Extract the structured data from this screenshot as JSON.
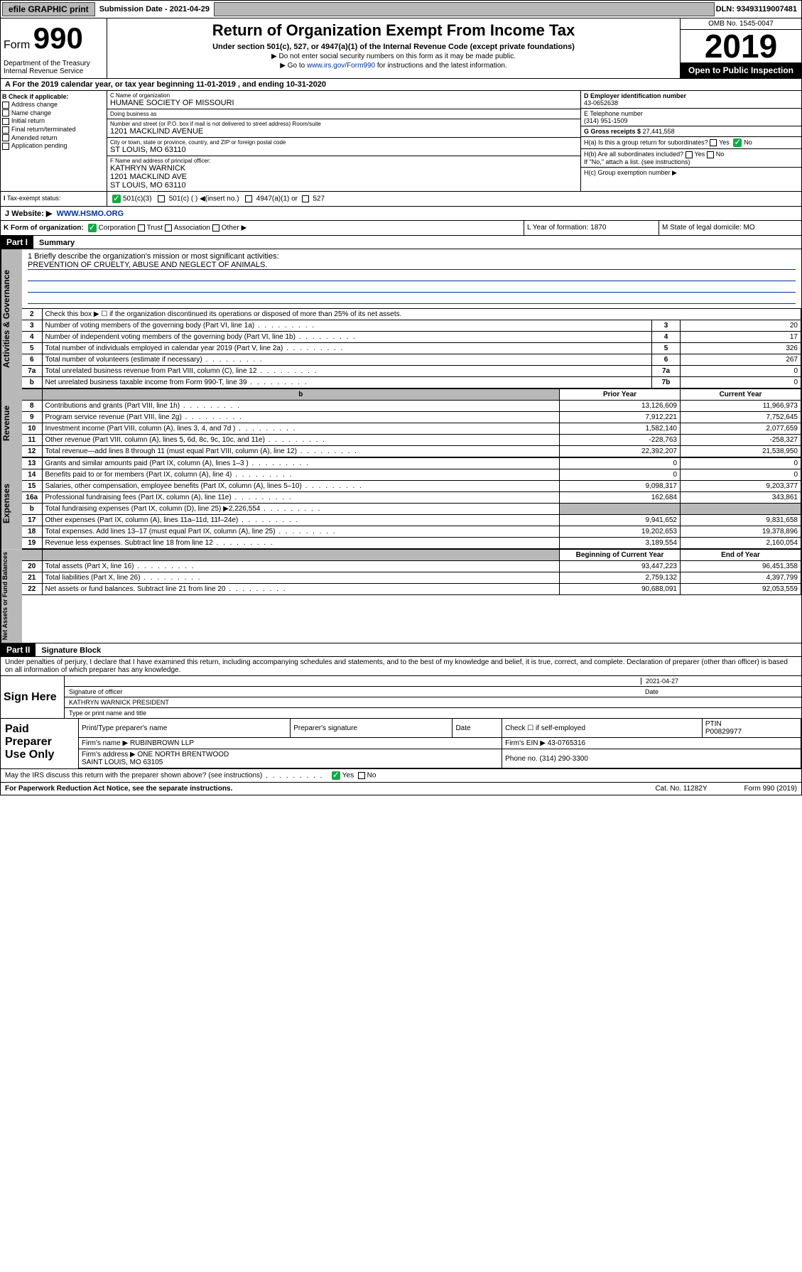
{
  "topbar": {
    "efile": "efile GRAPHIC print",
    "subdate_label": "Submission Date - 2021-04-29",
    "dln": "DLN: 93493119007481"
  },
  "header": {
    "form": "Form",
    "num": "990",
    "dept": "Department of the Treasury\nInternal Revenue Service",
    "title": "Return of Organization Exempt From Income Tax",
    "sub1": "Under section 501(c), 527, or 4947(a)(1) of the Internal Revenue Code (except private foundations)",
    "sub2": "▶ Do not enter social security numbers on this form as it may be made public.",
    "sub3_pre": "▶ Go to ",
    "sub3_link": "www.irs.gov/Form990",
    "sub3_post": " for instructions and the latest information.",
    "omb": "OMB No. 1545-0047",
    "year": "2019",
    "open": "Open to Public Inspection"
  },
  "lineA": "A For the 2019 calendar year, or tax year beginning 11-01-2019    , and ending 10-31-2020",
  "colB": {
    "hdr": "B Check if applicable:",
    "items": [
      "Address change",
      "Name change",
      "Initial return",
      "Final return/terminated",
      "Amended return",
      "Application pending"
    ]
  },
  "colC": {
    "name_lab": "C Name of organization",
    "name": "HUMANE SOCIETY OF MISSOURI",
    "dba_lab": "Doing business as",
    "dba": "",
    "addr_lab": "Number and street (or P.O. box if mail is not delivered to street address)          Room/suite",
    "addr": "1201 MACKLIND AVENUE",
    "city_lab": "City or town, state or province, country, and ZIP or foreign postal code",
    "city": "ST LOUIS, MO  63110",
    "officer_lab": "F  Name and address of principal officer:",
    "officer": "KATHRYN WARNICK\n1201 MACKLIND AVE\nST LOUIS, MO  63110"
  },
  "colD": {
    "ein_lab": "D Employer identification number",
    "ein": "43-0652638",
    "tel_lab": "E Telephone number",
    "tel": "(314) 951-1509",
    "gross_lab": "G Gross receipts $",
    "gross": "27,441,558",
    "ha": "H(a)  Is this a group return for subordinates?",
    "ha_no": "No",
    "ha_yes": "Yes",
    "hb": "H(b)  Are all subordinates included?",
    "hb_note": "If \"No,\" attach a list. (see instructions)",
    "hc": "H(c)  Group exemption number ▶"
  },
  "exempt": {
    "lab": "Tax-exempt status:",
    "c3": "501(c)(3)",
    "c": "501(c) (  ) ◀(insert no.)",
    "a1": "4947(a)(1) or",
    "s527": "527"
  },
  "website": {
    "lab": "J    Website: ▶",
    "url": "WWW.HSMO.ORG"
  },
  "rowK": {
    "k": "K Form of organization:",
    "corp": "Corporation",
    "trust": "Trust",
    "assoc": "Association",
    "other": "Other ▶",
    "l": "L Year of formation: 1870",
    "m": "M State of legal domicile: MO"
  },
  "part1": {
    "hdr": "Part I",
    "title": "Summary"
  },
  "mission": {
    "line1": "1  Briefly describe the organization's mission or most significant activities:",
    "text": "PREVENTION OF CRUELTY, ABUSE AND NEGLECT OF ANIMALS."
  },
  "gov_rows": [
    {
      "n": "2",
      "t": "Check this box ▶ ☐  if the organization discontinued its operations or disposed of more than 25% of its net assets."
    },
    {
      "n": "3",
      "t": "Number of voting members of the governing body (Part VI, line 1a)",
      "box": "3",
      "v": "20"
    },
    {
      "n": "4",
      "t": "Number of independent voting members of the governing body (Part VI, line 1b)",
      "box": "4",
      "v": "17"
    },
    {
      "n": "5",
      "t": "Total number of individuals employed in calendar year 2019 (Part V, line 2a)",
      "box": "5",
      "v": "326"
    },
    {
      "n": "6",
      "t": "Total number of volunteers (estimate if necessary)",
      "box": "6",
      "v": "267"
    },
    {
      "n": "7a",
      "t": "Total unrelated business revenue from Part VIII, column (C), line 12",
      "box": "7a",
      "v": "0"
    },
    {
      "n": "b",
      "t": "Net unrelated business taxable income from Form 990-T, line 39",
      "box": "7b",
      "v": "0"
    }
  ],
  "rev_hdr": {
    "py": "Prior Year",
    "cy": "Current Year"
  },
  "rev_rows": [
    {
      "n": "8",
      "t": "Contributions and grants (Part VIII, line 1h)",
      "py": "13,126,609",
      "cy": "11,966,973"
    },
    {
      "n": "9",
      "t": "Program service revenue (Part VIII, line 2g)",
      "py": "7,912,221",
      "cy": "7,752,645"
    },
    {
      "n": "10",
      "t": "Investment income (Part VIII, column (A), lines 3, 4, and 7d )",
      "py": "1,582,140",
      "cy": "2,077,659"
    },
    {
      "n": "11",
      "t": "Other revenue (Part VIII, column (A), lines 5, 6d, 8c, 9c, 10c, and 11e)",
      "py": "-228,763",
      "cy": "-258,327"
    },
    {
      "n": "12",
      "t": "Total revenue—add lines 8 through 11 (must equal Part VIII, column (A), line 12)",
      "py": "22,392,207",
      "cy": "21,538,950"
    }
  ],
  "exp_rows": [
    {
      "n": "13",
      "t": "Grants and similar amounts paid (Part IX, column (A), lines 1–3 )",
      "py": "0",
      "cy": "0"
    },
    {
      "n": "14",
      "t": "Benefits paid to or for members (Part IX, column (A), line 4)",
      "py": "0",
      "cy": "0"
    },
    {
      "n": "15",
      "t": "Salaries, other compensation, employee benefits (Part IX, column (A), lines 5–10)",
      "py": "9,098,317",
      "cy": "9,203,377"
    },
    {
      "n": "16a",
      "t": "Professional fundraising fees (Part IX, column (A), line 11e)",
      "py": "162,684",
      "cy": "343,861"
    },
    {
      "n": "b",
      "t": "Total fundraising expenses (Part IX, column (D), line 25) ▶2,226,554",
      "py": "",
      "cy": "",
      "shade": true
    },
    {
      "n": "17",
      "t": "Other expenses (Part IX, column (A), lines 11a–11d, 11f–24e)",
      "py": "9,941,652",
      "cy": "9,831,658"
    },
    {
      "n": "18",
      "t": "Total expenses. Add lines 13–17 (must equal Part IX, column (A), line 25)",
      "py": "19,202,653",
      "cy": "19,378,896"
    },
    {
      "n": "19",
      "t": "Revenue less expenses. Subtract line 18 from line 12",
      "py": "3,189,554",
      "cy": "2,160,054"
    }
  ],
  "net_hdr": {
    "py": "Beginning of Current Year",
    "cy": "End of Year"
  },
  "net_rows": [
    {
      "n": "20",
      "t": "Total assets (Part X, line 16)",
      "py": "93,447,223",
      "cy": "96,451,358"
    },
    {
      "n": "21",
      "t": "Total liabilities (Part X, line 26)",
      "py": "2,759,132",
      "cy": "4,397,799"
    },
    {
      "n": "22",
      "t": "Net assets or fund balances. Subtract line 21 from line 20",
      "py": "90,688,091",
      "cy": "92,053,559"
    }
  ],
  "part2": {
    "hdr": "Part II",
    "title": "Signature Block"
  },
  "perjury": "Under penalties of perjury, I declare that I have examined this return, including accompanying schedules and statements, and to the best of my knowledge and belief, it is true, correct, and complete. Declaration of preparer (other than officer) is based on all information of which preparer has any knowledge.",
  "sign": {
    "lab": "Sign Here",
    "sig_lab": "Signature of officer",
    "date": "2021-04-27",
    "date_lab": "Date",
    "name": "KATHRYN WARNICK  PRESIDENT",
    "name_lab": "Type or print name and title"
  },
  "paid": {
    "lab": "Paid Preparer Use Only",
    "c1": "Print/Type preparer's name",
    "c2": "Preparer's signature",
    "c3": "Date",
    "c4": "Check ☐ if self-employed",
    "c5": "PTIN",
    "ptin": "P00829977",
    "firm_lab": "Firm's name    ▶",
    "firm": "RUBINBROWN LLP",
    "ein_lab": "Firm's EIN ▶",
    "ein": "43-0765316",
    "addr_lab": "Firm's address ▶",
    "addr": "ONE NORTH BRENTWOOD\nSAINT LOUIS, MO  63105",
    "phone_lab": "Phone no.",
    "phone": "(314) 290-3300"
  },
  "discuss": "May the IRS discuss this return with the preparer shown above? (see instructions)",
  "foot": {
    "f1": "For Paperwork Reduction Act Notice, see the separate instructions.",
    "f2": "Cat. No. 11282Y",
    "f3": "Form 990 (2019)"
  },
  "colors": {
    "link": "#003399",
    "accent": "#11aa44",
    "shade": "#b8b8b8"
  }
}
